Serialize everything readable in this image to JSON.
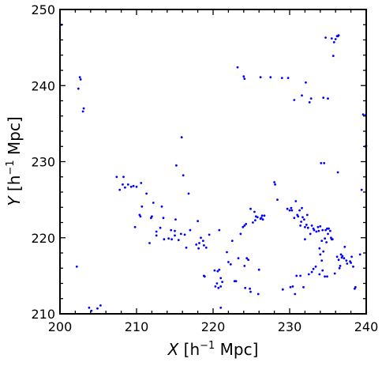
{
  "chart_data": {
    "type": "scatter",
    "xlabel": {
      "var": "X",
      "unit_prefix": " [h",
      "sup": "−1",
      "unit_suffix": " Mpc]"
    },
    "ylabel": {
      "var": "Y",
      "unit_prefix": " [h",
      "sup": "−1",
      "unit_suffix": " Mpc]"
    },
    "xlim": [
      200,
      240
    ],
    "ylim": [
      210,
      250
    ],
    "xticks": [
      200,
      210,
      220,
      230,
      240
    ],
    "yticks": [
      210,
      220,
      230,
      240,
      250
    ],
    "xtick_labels": [
      "200",
      "210",
      "220",
      "230",
      "240"
    ],
    "ytick_labels": [
      "210",
      "220",
      "230",
      "240",
      "250"
    ],
    "grid": false,
    "marker_color": "#0000ff",
    "series": [
      {
        "points": [
          [
            200.2,
            248.0
          ],
          [
            202.2,
            216.2
          ],
          [
            202.4,
            239.6
          ],
          [
            202.6,
            241.1
          ],
          [
            202.7,
            240.8
          ],
          [
            203.0,
            236.6
          ],
          [
            203.1,
            237.0
          ],
          [
            203.8,
            210.8
          ],
          [
            204.1,
            210.4
          ],
          [
            204.9,
            210.7
          ],
          [
            205.3,
            211.1
          ],
          [
            207.4,
            228.0
          ],
          [
            207.8,
            226.3
          ],
          [
            208.2,
            227.0
          ],
          [
            208.3,
            228.0
          ],
          [
            208.5,
            226.6
          ],
          [
            208.9,
            227.0
          ],
          [
            209.3,
            226.7
          ],
          [
            209.6,
            226.8
          ],
          [
            209.8,
            221.4
          ],
          [
            210.0,
            226.7
          ],
          [
            210.4,
            223.0
          ],
          [
            210.6,
            227.2
          ],
          [
            210.7,
            224.1
          ],
          [
            210.5,
            222.8
          ],
          [
            211.3,
            225.8
          ],
          [
            211.7,
            219.3
          ],
          [
            211.9,
            222.6
          ],
          [
            212.0,
            222.8
          ],
          [
            212.2,
            224.6
          ],
          [
            212.6,
            220.3
          ],
          [
            212.6,
            220.8
          ],
          [
            213.1,
            221.3
          ],
          [
            213.3,
            224.1
          ],
          [
            213.6,
            219.8
          ],
          [
            213.5,
            222.6
          ],
          [
            214.2,
            219.9
          ],
          [
            214.5,
            221.0
          ],
          [
            214.6,
            219.8
          ],
          [
            215.0,
            220.3
          ],
          [
            215.0,
            220.9
          ],
          [
            215.1,
            222.4
          ],
          [
            215.2,
            229.5
          ],
          [
            215.5,
            219.7
          ],
          [
            215.8,
            220.5
          ],
          [
            215.9,
            233.2
          ],
          [
            216.1,
            228.2
          ],
          [
            216.3,
            220.4
          ],
          [
            216.5,
            218.7
          ],
          [
            216.8,
            225.8
          ],
          [
            217.0,
            221.0
          ],
          [
            217.8,
            219.1
          ],
          [
            218.0,
            222.2
          ],
          [
            218.1,
            218.6
          ],
          [
            218.2,
            219.3
          ],
          [
            218.4,
            220.0
          ],
          [
            218.7,
            219.6
          ],
          [
            218.8,
            219.0
          ],
          [
            219.1,
            218.7
          ],
          [
            219.5,
            220.4
          ],
          [
            218.8,
            215.0
          ],
          [
            218.9,
            214.9
          ],
          [
            220.2,
            215.7
          ],
          [
            220.3,
            213.6
          ],
          [
            220.5,
            214.0
          ],
          [
            220.6,
            215.6
          ],
          [
            220.7,
            213.4
          ],
          [
            220.8,
            215.8
          ],
          [
            221.0,
            214.7
          ],
          [
            221.2,
            214.2
          ],
          [
            221.0,
            213.6
          ],
          [
            220.8,
            221.0
          ],
          [
            221.0,
            210.8
          ],
          [
            221.8,
            218.1
          ],
          [
            222.0,
            216.8
          ],
          [
            222.3,
            216.5
          ],
          [
            222.5,
            219.6
          ],
          [
            222.8,
            214.3
          ],
          [
            223.0,
            214.3
          ],
          [
            223.2,
            242.4
          ],
          [
            223.3,
            217.3
          ],
          [
            223.6,
            220.5
          ],
          [
            223.9,
            221.4
          ],
          [
            224.1,
            221.6
          ],
          [
            224.3,
            221.8
          ],
          [
            224.4,
            217.3
          ],
          [
            224.1,
            216.3
          ],
          [
            224.2,
            213.4
          ],
          [
            224.6,
            217.1
          ],
          [
            224.8,
            213.3
          ],
          [
            224.9,
            212.9
          ],
          [
            224.9,
            223.8
          ],
          [
            225.2,
            222.0
          ],
          [
            225.4,
            223.4
          ],
          [
            225.5,
            222.3
          ],
          [
            225.6,
            222.8
          ],
          [
            225.8,
            222.7
          ],
          [
            225.9,
            212.6
          ],
          [
            226.0,
            215.8
          ],
          [
            226.2,
            222.5
          ],
          [
            226.3,
            222.6
          ],
          [
            226.4,
            222.9
          ],
          [
            226.5,
            222.4
          ],
          [
            226.7,
            222.9
          ],
          [
            224.0,
            241.2
          ],
          [
            224.1,
            240.9
          ],
          [
            226.2,
            241.1
          ],
          [
            227.5,
            241.1
          ],
          [
            228.0,
            227.3
          ],
          [
            228.1,
            227.0
          ],
          [
            228.4,
            225.0
          ],
          [
            229.0,
            241.0
          ],
          [
            229.1,
            213.2
          ],
          [
            229.7,
            223.8
          ],
          [
            229.8,
            241.0
          ],
          [
            230.0,
            223.6
          ],
          [
            230.1,
            213.5
          ],
          [
            230.2,
            223.9
          ],
          [
            230.3,
            223.6
          ],
          [
            230.4,
            213.6
          ],
          [
            230.6,
            222.6
          ],
          [
            230.7,
            212.6
          ],
          [
            230.6,
            238.1
          ],
          [
            230.8,
            224.8
          ],
          [
            230.9,
            215.0
          ],
          [
            231.0,
            223.0
          ],
          [
            231.1,
            222.8
          ],
          [
            231.3,
            223.6
          ],
          [
            231.4,
            215.0
          ],
          [
            231.4,
            221.6
          ],
          [
            231.5,
            222.1
          ],
          [
            231.6,
            238.7
          ],
          [
            231.6,
            223.9
          ],
          [
            231.7,
            222.7
          ],
          [
            231.8,
            213.5
          ],
          [
            231.9,
            222.4
          ],
          [
            232.0,
            221.4
          ],
          [
            232.1,
            240.4
          ],
          [
            232.0,
            219.8
          ],
          [
            232.2,
            221.7
          ],
          [
            232.3,
            223.0
          ],
          [
            232.4,
            221.3
          ],
          [
            232.5,
            215.2
          ],
          [
            232.6,
            237.8
          ],
          [
            232.7,
            220.5
          ],
          [
            232.8,
            238.3
          ],
          [
            232.9,
            221.6
          ],
          [
            232.9,
            215.5
          ],
          [
            233.1,
            215.9
          ],
          [
            233.1,
            221.2
          ],
          [
            233.2,
            221.0
          ],
          [
            233.4,
            216.2
          ],
          [
            233.5,
            220.8
          ],
          [
            233.7,
            221.4
          ],
          [
            233.8,
            220.9
          ],
          [
            233.9,
            218.6
          ],
          [
            233.9,
            215.2
          ],
          [
            234.0,
            221.5
          ],
          [
            234.0,
            217.8
          ],
          [
            234.1,
            229.8
          ],
          [
            234.2,
            219.6
          ],
          [
            234.2,
            217.0
          ],
          [
            234.3,
            215.7
          ],
          [
            234.3,
            221.0
          ],
          [
            234.4,
            238.4
          ],
          [
            234.5,
            229.8
          ],
          [
            234.4,
            218.2
          ],
          [
            234.6,
            219.9
          ],
          [
            234.6,
            214.9
          ],
          [
            234.7,
            221.0
          ],
          [
            234.7,
            246.3
          ],
          [
            234.8,
            219.4
          ],
          [
            234.9,
            221.2
          ],
          [
            234.9,
            214.9
          ],
          [
            235.0,
            220.5
          ],
          [
            235.0,
            238.3
          ],
          [
            235.1,
            221.2
          ],
          [
            235.3,
            220.9
          ],
          [
            235.4,
            220.0
          ],
          [
            235.5,
            219.8
          ],
          [
            235.6,
            219.8
          ],
          [
            235.7,
            243.9
          ],
          [
            235.5,
            246.2
          ],
          [
            235.8,
            245.7
          ],
          [
            235.9,
            215.3
          ],
          [
            236.0,
            246.1
          ],
          [
            236.2,
            246.5
          ],
          [
            236.3,
            246.5
          ],
          [
            236.4,
            246.6
          ],
          [
            236.3,
            228.6
          ],
          [
            236.2,
            217.5
          ],
          [
            236.4,
            217.1
          ],
          [
            236.5,
            216.0
          ],
          [
            236.6,
            216.3
          ],
          [
            236.7,
            217.8
          ],
          [
            236.8,
            217.4
          ],
          [
            236.9,
            217.6
          ],
          [
            237.1,
            217.3
          ],
          [
            237.2,
            218.8
          ],
          [
            237.4,
            217.0
          ],
          [
            237.5,
            216.6
          ],
          [
            237.9,
            216.9
          ],
          [
            238.0,
            216.7
          ],
          [
            238.1,
            217.5
          ],
          [
            238.3,
            216.2
          ],
          [
            238.5,
            213.3
          ],
          [
            238.6,
            213.5
          ],
          [
            239.2,
            217.8
          ],
          [
            239.4,
            226.3
          ],
          [
            239.6,
            236.2
          ],
          [
            239.9,
            236.1
          ],
          [
            239.9,
            232.0
          ],
          [
            240.0,
            232.1
          ]
        ]
      }
    ]
  }
}
